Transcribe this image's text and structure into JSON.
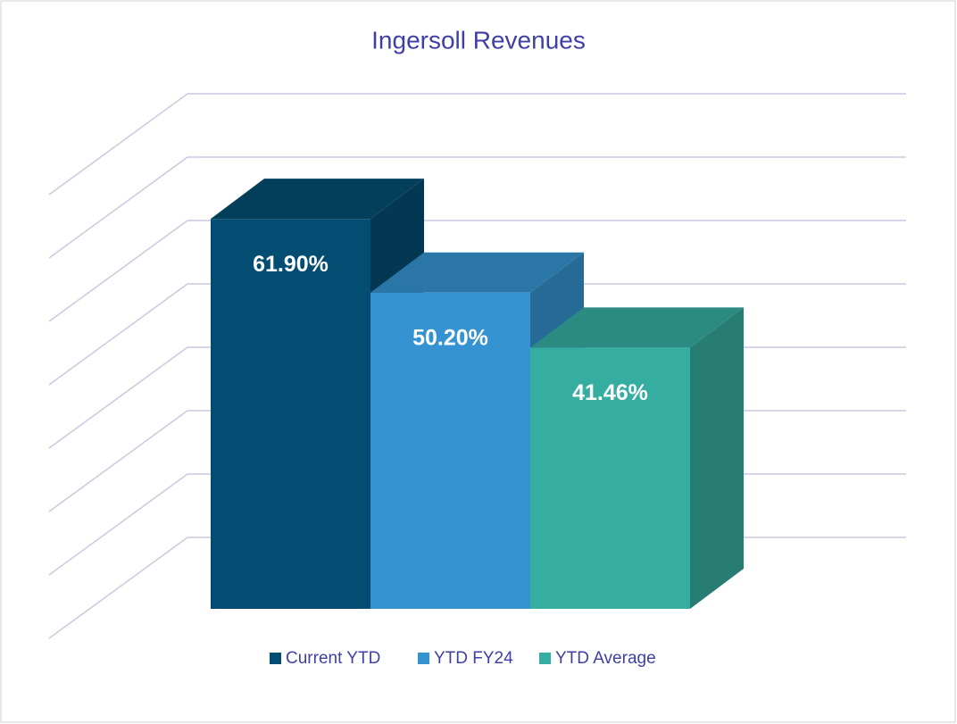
{
  "chart_data": {
    "type": "bar3d",
    "title": "Ingersoll Revenues",
    "series": [
      {
        "name": "Current YTD",
        "color": "#044d72",
        "values": [
          61.9
        ],
        "value_labels": [
          "61.90%"
        ]
      },
      {
        "name": "YTD FY24",
        "color": "#3593d1",
        "values": [
          50.2
        ],
        "value_labels": [
          "50.20%"
        ]
      },
      {
        "name": "YTD Average",
        "color": "#36ada1",
        "values": [
          41.46
        ],
        "value_labels": [
          "41.46%"
        ]
      }
    ],
    "ylim": [
      0,
      70
    ],
    "yticks": [
      0,
      10,
      20,
      30,
      40,
      50,
      60,
      70
    ],
    "grid": true,
    "legend": "bottom"
  }
}
